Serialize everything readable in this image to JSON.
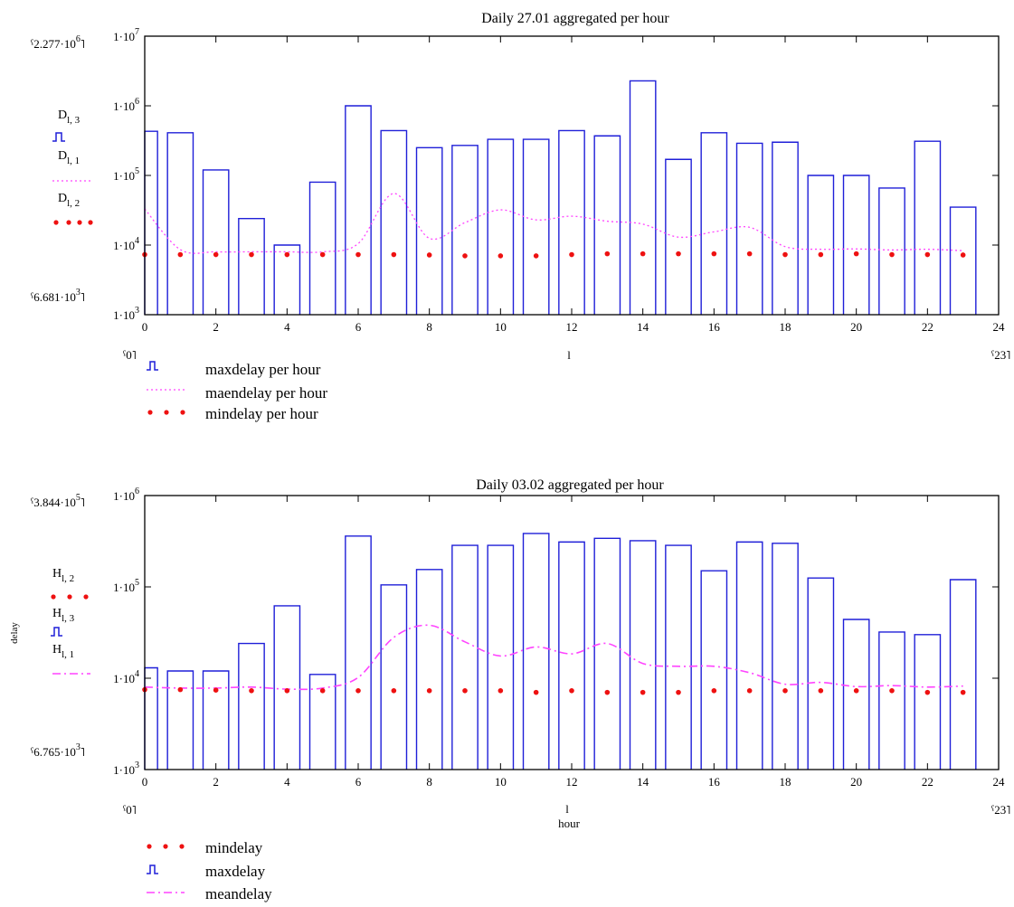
{
  "colors": {
    "max": "#1f1fd8",
    "mean": "#ff44ff",
    "min": "#ee1111",
    "axis": "#000000"
  },
  "chart_data": [
    {
      "type": "bar",
      "title": "Daily 27.01 aggregated per hour",
      "yscale": "log",
      "xlim": [
        0,
        24
      ],
      "ylim": [
        1000,
        10000000
      ],
      "x_ticks": [
        "0",
        "2",
        "4",
        "6",
        "8",
        "10",
        "12",
        "14",
        "16",
        "18",
        "20",
        "22",
        "24"
      ],
      "y_ticks": [
        {
          "value": 1000,
          "mant": "1·10",
          "exp": "3"
        },
        {
          "value": 10000,
          "mant": "1·10",
          "exp": "4"
        },
        {
          "value": 100000,
          "mant": "1·10",
          "exp": "5"
        },
        {
          "value": 1000000,
          "mant": "1·10",
          "exp": "6"
        },
        {
          "value": 10000000,
          "mant": "1·10",
          "exp": "7"
        }
      ],
      "y_top_label": {
        "mant": "2.277·10",
        "exp": "6"
      },
      "y_bottom_label": {
        "mant": "6.681·10",
        "exp": "3"
      },
      "x_left_label": "0",
      "x_right_label": "23",
      "x_var": "l",
      "xlabel": "",
      "ylabel": "",
      "y_series_labels": [
        {
          "base": "D",
          "sub": "l, 3",
          "style": "bar"
        },
        {
          "base": "D",
          "sub": "l, 1",
          "style": "dots"
        },
        {
          "base": "D",
          "sub": "l, 2",
          "style": "points"
        }
      ],
      "x": [
        0,
        1,
        2,
        3,
        4,
        5,
        6,
        7,
        8,
        9,
        10,
        11,
        12,
        13,
        14,
        15,
        16,
        17,
        18,
        19,
        20,
        21,
        22,
        23
      ],
      "series": [
        {
          "name": "maxdelay per hour",
          "style": "bar",
          "values": [
            430000,
            410000,
            120000,
            24000,
            10000,
            80000,
            1000000,
            440000,
            250000,
            270000,
            330000,
            330000,
            440000,
            370000,
            2277000,
            170000,
            410000,
            290000,
            300000,
            100000,
            100000,
            66000,
            310000,
            35000
          ]
        },
        {
          "name": "maendelay per hour",
          "style": "dots",
          "values": [
            33000,
            8600,
            8000,
            8000,
            8000,
            8000,
            10500,
            55000,
            12500,
            21000,
            32000,
            23000,
            26000,
            22000,
            20000,
            13000,
            15500,
            18000,
            9500,
            8700,
            8800,
            8500,
            8700,
            8300
          ]
        },
        {
          "name": "mindelay per hour",
          "style": "points",
          "values": [
            7300,
            7300,
            7300,
            7300,
            7300,
            7300,
            7300,
            7300,
            7200,
            7000,
            7000,
            7000,
            7300,
            7500,
            7500,
            7500,
            7500,
            7500,
            7300,
            7300,
            7500,
            7300,
            7300,
            7200
          ]
        }
      ],
      "legend": [
        {
          "label": "maxdelay per hour",
          "style": "bar"
        },
        {
          "label": "maendelay per hour",
          "style": "dots"
        },
        {
          "label": "mindelay per hour",
          "style": "points"
        }
      ]
    },
    {
      "type": "bar",
      "title": "Daily 03.02 aggregated per hour",
      "yscale": "log",
      "xlim": [
        0,
        24
      ],
      "ylim": [
        1000,
        1000000
      ],
      "x_ticks": [
        "0",
        "2",
        "4",
        "6",
        "8",
        "10",
        "12",
        "14",
        "16",
        "18",
        "20",
        "22",
        "24"
      ],
      "y_ticks": [
        {
          "value": 1000,
          "mant": "1·10",
          "exp": "3"
        },
        {
          "value": 10000,
          "mant": "1·10",
          "exp": "4"
        },
        {
          "value": 100000,
          "mant": "1·10",
          "exp": "5"
        },
        {
          "value": 1000000,
          "mant": "1·10",
          "exp": "6"
        }
      ],
      "y_top_label": {
        "mant": "3.844·10",
        "exp": "5"
      },
      "y_bottom_label": {
        "mant": "6.765·10",
        "exp": "3"
      },
      "x_left_label": "0",
      "x_right_label": "23",
      "x_var": "l",
      "xlabel": "hour",
      "ylabel": "delay",
      "y_series_labels": [
        {
          "base": "H",
          "sub": "l, 2",
          "style": "points"
        },
        {
          "base": "H",
          "sub": "l, 3",
          "style": "bar"
        },
        {
          "base": "H",
          "sub": "l, 1",
          "style": "dashdot"
        }
      ],
      "x": [
        0,
        1,
        2,
        3,
        4,
        5,
        6,
        7,
        8,
        9,
        10,
        11,
        12,
        13,
        14,
        15,
        16,
        17,
        18,
        19,
        20,
        21,
        22,
        23
      ],
      "series": [
        {
          "name": "maxdelay",
          "style": "bar",
          "values": [
            13000,
            12000,
            12000,
            24000,
            62000,
            11000,
            360000,
            105000,
            155000,
            285000,
            285000,
            384400,
            310000,
            340000,
            320000,
            285000,
            150000,
            310000,
            300000,
            125000,
            44000,
            32000,
            30000,
            120000
          ]
        },
        {
          "name": "meandelay",
          "style": "dashdot",
          "values": [
            8000,
            7800,
            7800,
            8000,
            7600,
            7800,
            10200,
            28000,
            38000,
            25000,
            17500,
            22000,
            18500,
            24000,
            14500,
            13500,
            13500,
            11500,
            8600,
            9000,
            8100,
            8300,
            8000,
            8200
          ]
        },
        {
          "name": "mindelay",
          "style": "points",
          "values": [
            7500,
            7500,
            7400,
            7300,
            7300,
            7300,
            7300,
            7300,
            7300,
            7300,
            7300,
            7000,
            7300,
            7000,
            7000,
            7000,
            7300,
            7300,
            7300,
            7300,
            7300,
            7300,
            7000,
            7000
          ]
        }
      ],
      "legend": [
        {
          "label": "mindelay",
          "style": "points"
        },
        {
          "label": "maxdelay",
          "style": "bar"
        },
        {
          "label": "meandelay",
          "style": "dashdot"
        }
      ]
    }
  ]
}
